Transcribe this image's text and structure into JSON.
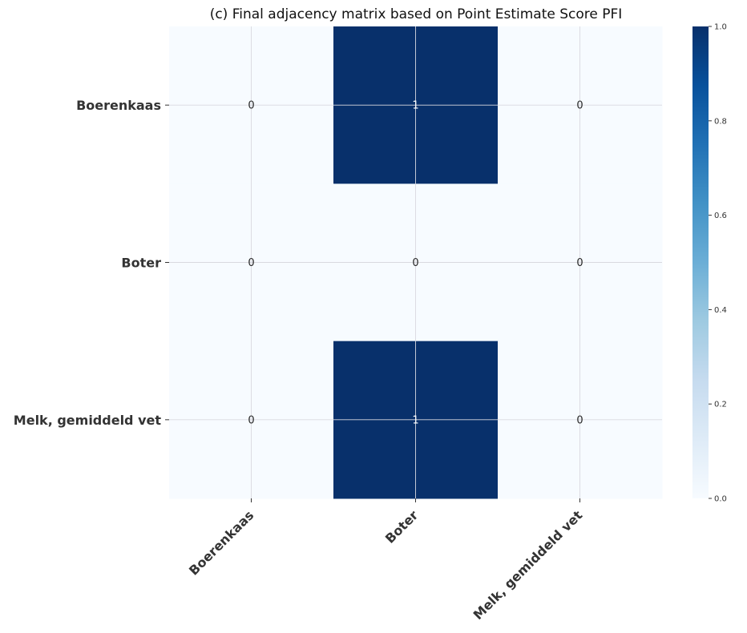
{
  "chart_data": {
    "type": "heatmap",
    "title": "(c) Final adjacency matrix based on Point Estimate Score PFI",
    "rows": [
      "Boerenkaas",
      "Boter",
      "Melk, gemiddeld vet"
    ],
    "columns": [
      "Boerenkaas",
      "Boter",
      "Melk, gemiddeld vet"
    ],
    "values": [
      [
        0,
        1,
        0
      ],
      [
        0,
        0,
        0
      ],
      [
        0,
        1,
        0
      ]
    ],
    "cell_labels": [
      [
        "0",
        "1",
        "0"
      ],
      [
        "0",
        "0",
        "0"
      ],
      [
        "0",
        "1",
        "0"
      ]
    ],
    "colormap": "Blues",
    "colors": {
      "low": "#f7fbff",
      "high": "#08306b"
    },
    "vmin": 0,
    "vmax": 1,
    "colorbar": {
      "ticks": [
        0.0,
        0.2,
        0.4,
        0.6,
        0.8,
        1.0
      ],
      "tick_labels": [
        "0.0",
        "0.2",
        "0.4",
        "0.6",
        "0.8",
        "1.0"
      ]
    },
    "grid": true
  }
}
